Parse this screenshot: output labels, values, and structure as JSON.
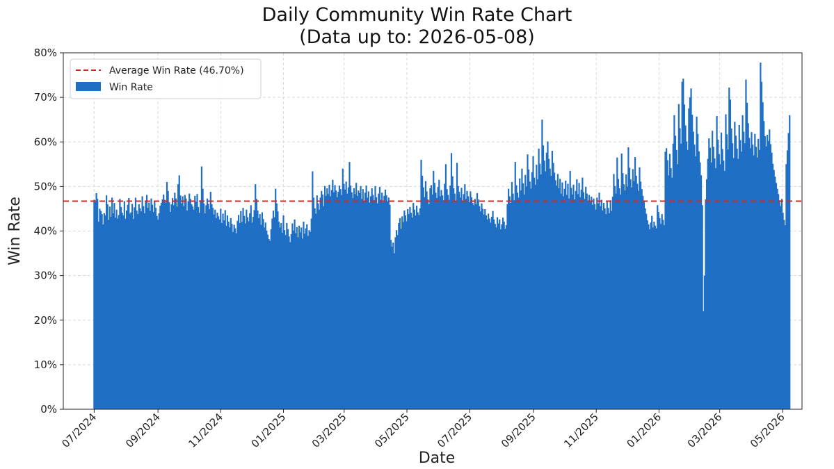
{
  "chart_data": {
    "type": "bar",
    "title": "Daily Community Win Rate Chart",
    "subtitle": "(Data up to: 2026-05-08)",
    "xlabel": "Date",
    "ylabel": "Win Rate",
    "ylim": [
      0,
      80
    ],
    "yticks": [
      "0%",
      "10%",
      "20%",
      "30%",
      "40%",
      "50%",
      "60%",
      "70%",
      "80%"
    ],
    "xlim": [
      "2024-06-01",
      "2026-05-20"
    ],
    "xticks": [
      {
        "date": "2024-07-01",
        "label": "07/2024"
      },
      {
        "date": "2024-09-01",
        "label": "09/2024"
      },
      {
        "date": "2024-11-01",
        "label": "11/2024"
      },
      {
        "date": "2025-01-01",
        "label": "01/2025"
      },
      {
        "date": "2025-03-01",
        "label": "03/2025"
      },
      {
        "date": "2025-05-01",
        "label": "05/2025"
      },
      {
        "date": "2025-07-01",
        "label": "07/2025"
      },
      {
        "date": "2025-09-01",
        "label": "09/2025"
      },
      {
        "date": "2025-11-01",
        "label": "11/2025"
      },
      {
        "date": "2026-01-01",
        "label": "01/2026"
      },
      {
        "date": "2026-03-01",
        "label": "03/2026"
      },
      {
        "date": "2026-05-01",
        "label": "05/2026"
      }
    ],
    "grid": true,
    "legend_position": "top-left",
    "average": {
      "value": 46.7,
      "label": "Average Win Rate (46.70%)",
      "color": "#d62728"
    },
    "series": [
      {
        "name": "Win Rate",
        "color": "#1f6fc5",
        "start_date": "2024-07-01",
        "end_date": "2026-05-08",
        "values": [
          47.0,
          46.5,
          48.5,
          47.2,
          42.1,
          45.0,
          44.5,
          43.8,
          41.5,
          44.0,
          43.5,
          48.0,
          46.0,
          42.5,
          45.5,
          43.2,
          47.5,
          44.0,
          46.3,
          43.0,
          44.8,
          42.8,
          43.6,
          47.2,
          45.4,
          44.1,
          43.5,
          46.7,
          42.8,
          44.6,
          45.9,
          47.4,
          43.9,
          44.2,
          46.1,
          42.7,
          45.3,
          47.5,
          44.6,
          43.8,
          46.0,
          45.1,
          44.4,
          47.8,
          45.6,
          44.0,
          46.7,
          48.1,
          45.2,
          46.4,
          44.5,
          47.3,
          45.9,
          44.3,
          46.8,
          45.2,
          43.4,
          42.5,
          44.0,
          45.7,
          46.3,
          47.1,
          48.2,
          47.0,
          46.4,
          51.0,
          49.0,
          46.5,
          44.3,
          46.0,
          47.4,
          45.8,
          48.6,
          47.3,
          45.5,
          50.5,
          52.5,
          48.0,
          46.2,
          47.8,
          45.6,
          48.1,
          47.3,
          44.6,
          46.7,
          48.4,
          47.2,
          46.0,
          45.5,
          44.8,
          47.9,
          46.6,
          48.3,
          45.4,
          44.1,
          46.9,
          54.5,
          49.5,
          46.2,
          44.0,
          45.8,
          47.3,
          46.1,
          44.9,
          48.8,
          46.0,
          45.2,
          43.7,
          44.8,
          42.9,
          44.1,
          43.3,
          42.6,
          45.0,
          41.8,
          43.9,
          42.4,
          44.7,
          41.2,
          43.5,
          42.1,
          40.8,
          42.9,
          41.6,
          39.8,
          41.4,
          40.6,
          39.5,
          42.3,
          43.6,
          41.8,
          44.5,
          42.0,
          45.2,
          43.4,
          41.7,
          44.8,
          43.1,
          42.2,
          44.0,
          45.8,
          41.9,
          43.2,
          44.7,
          50.5,
          47.2,
          44.6,
          42.9,
          43.8,
          41.4,
          44.2,
          42.7,
          40.8,
          41.9,
          40.1,
          39.2,
          38.2,
          37.8,
          40.4,
          42.8,
          44.6,
          43.1,
          49.5,
          46.2,
          44.4,
          42.1,
          40.8,
          41.8,
          39.6,
          43.5,
          40.2,
          39.1,
          41.8,
          40.4,
          38.8,
          37.5,
          39.3,
          41.7,
          40.1,
          42.6,
          39.5,
          40.9,
          38.6,
          41.2,
          39.7,
          40.8,
          38.3,
          42.1,
          39.4,
          40.6,
          41.5,
          38.9,
          40.2,
          39.8,
          42.8,
          53.4,
          47.5,
          45.1,
          43.9,
          48.0,
          46.2,
          44.8,
          47.5,
          49.0,
          48.2,
          45.6,
          50.1,
          47.9,
          49.6,
          48.3,
          50.4,
          47.8,
          49.2,
          51.5,
          48.7,
          50.3,
          49.1,
          47.6,
          48.8,
          50.2,
          49.4,
          48.1,
          54.0,
          50.6,
          49.3,
          51.1,
          48.4,
          49.8,
          55.5,
          50.2,
          48.7,
          47.4,
          49.6,
          48.3,
          50.8,
          47.9,
          49.1,
          48.5,
          50.1,
          47.2,
          49.4,
          46.8,
          48.6,
          50.2,
          47.5,
          48.9,
          46.4,
          47.8,
          49.6,
          48.1,
          46.9,
          50.1,
          47.6,
          46.2,
          48.4,
          49.9,
          47.0,
          48.6,
          46.5,
          47.9,
          49.3,
          48.0,
          46.7,
          47.5,
          45.9,
          38.0,
          36.5,
          37.4,
          35.0,
          38.6,
          40.2,
          39.1,
          41.8,
          42.9,
          40.5,
          43.3,
          42.0,
          44.6,
          43.5,
          42.2,
          44.9,
          43.8,
          45.4,
          44.1,
          43.0,
          46.3,
          44.8,
          43.5,
          45.7,
          44.2,
          43.6,
          45.1,
          56.0,
          52.4,
          49.8,
          47.6,
          51.2,
          48.9,
          47.1,
          46.0,
          49.6,
          50.3,
          48.2,
          53.5,
          50.8,
          48.6,
          47.4,
          49.9,
          51.5,
          47.8,
          49.2,
          48.0,
          46.9,
          50.6,
          55.0,
          49.4,
          48.1,
          47.0,
          50.2,
          57.5,
          52.3,
          49.6,
          48.4,
          46.7,
          55.3,
          50.1,
          48.8,
          47.5,
          49.7,
          46.6,
          48.3,
          50.5,
          47.2,
          49.0,
          47.8,
          46.5,
          48.9,
          47.6,
          46.3,
          45.8,
          47.2,
          46.0,
          48.5,
          47.1,
          45.6,
          44.4,
          46.2,
          45.0,
          43.7,
          44.9,
          43.5,
          42.6,
          43.9,
          42.8,
          41.9,
          43.2,
          44.5,
          42.6,
          41.6,
          40.8,
          43.1,
          41.7,
          42.6,
          40.4,
          41.5,
          43.0,
          42.1,
          40.5,
          41.3,
          46.0,
          49.5,
          47.8,
          46.3,
          51.0,
          48.4,
          46.9,
          55.5,
          50.3,
          48.6,
          47.5,
          51.8,
          49.1,
          54.0,
          50.7,
          48.2,
          52.6,
          50.0,
          57.2,
          53.8,
          51.1,
          49.5,
          53.2,
          56.8,
          52.0,
          50.4,
          54.9,
          51.6,
          58.5,
          55.1,
          52.7,
          65.0,
          59.2,
          55.8,
          53.4,
          57.6,
          60.1,
          56.2,
          54.0,
          52.4,
          58.0,
          55.3,
          53.1,
          51.4,
          50.2,
          52.8,
          49.6,
          51.7,
          48.4,
          50.9,
          47.8,
          49.5,
          51.3,
          48.1,
          50.6,
          47.3,
          53.5,
          49.7,
          48.2,
          50.4,
          47.1,
          49.0,
          51.6,
          48.3,
          50.8,
          47.6,
          49.3,
          52.0,
          48.7,
          47.2,
          49.9,
          48.4,
          46.8,
          48.1,
          46.5,
          47.7,
          45.9,
          47.3,
          46.0,
          44.8,
          47.5,
          46.2,
          48.6,
          45.6,
          47.0,
          44.6,
          46.3,
          45.1,
          43.8,
          46.6,
          45.2,
          44.0,
          46.9,
          44.5,
          47.7,
          52.8,
          50.1,
          48.4,
          56.5,
          51.7,
          49.6,
          48.2,
          57.4,
          53.0,
          50.5,
          49.1,
          52.7,
          50.0,
          58.8,
          54.2,
          51.6,
          49.8,
          53.9,
          51.2,
          56.6,
          52.4,
          50.6,
          49.0,
          54.3,
          51.1,
          49.4,
          47.9,
          46.6,
          45.1,
          43.9,
          42.4,
          41.5,
          40.4,
          41.9,
          43.4,
          40.8,
          42.1,
          41.2,
          40.6,
          45.8,
          44.3,
          42.9,
          41.6,
          43.8,
          42.5,
          41.3,
          57.8,
          58.6,
          55.9,
          52.5,
          57.3,
          54.1,
          52.0,
          59.6,
          66.0,
          61.4,
          58.2,
          55.0,
          68.5,
          63.1,
          59.6,
          73.5,
          74.2,
          68.4,
          63.7,
          60.1,
          58.2,
          67.5,
          70.0,
          72.0,
          66.1,
          62.3,
          59.4,
          56.8,
          65.7,
          61.8,
          57.9,
          55.4,
          52.5,
          45.8,
          22.0,
          30.0,
          47.1,
          51.6,
          56.2,
          60.8,
          58.7,
          55.4,
          62.5,
          58.9,
          56.3,
          54.1,
          65.8,
          60.5,
          57.3,
          55.0,
          62.1,
          58.4,
          55.8,
          53.5,
          66.2,
          61.7,
          58.3,
          72.2,
          69.5,
          63.0,
          59.7,
          56.4,
          64.5,
          61.4,
          58.5,
          56.2,
          63.8,
          60.4,
          57.8,
          66.0,
          62.3,
          59.7,
          74.0,
          68.8,
          64.2,
          60.9,
          58.6,
          62.2,
          59.4,
          57.0,
          61.8,
          58.9,
          56.5,
          60.7,
          58.2,
          77.8,
          73.5,
          68.9,
          64.7,
          61.3,
          59.0,
          61.6,
          60.2,
          62.8,
          59.5,
          57.6,
          55.1,
          53.7,
          52.2,
          50.8,
          49.5,
          48.3,
          46.9,
          45.6,
          47.2,
          44.1,
          42.5,
          41.3,
          55.0,
          58.1,
          62.0,
          66.0
        ]
      }
    ]
  }
}
